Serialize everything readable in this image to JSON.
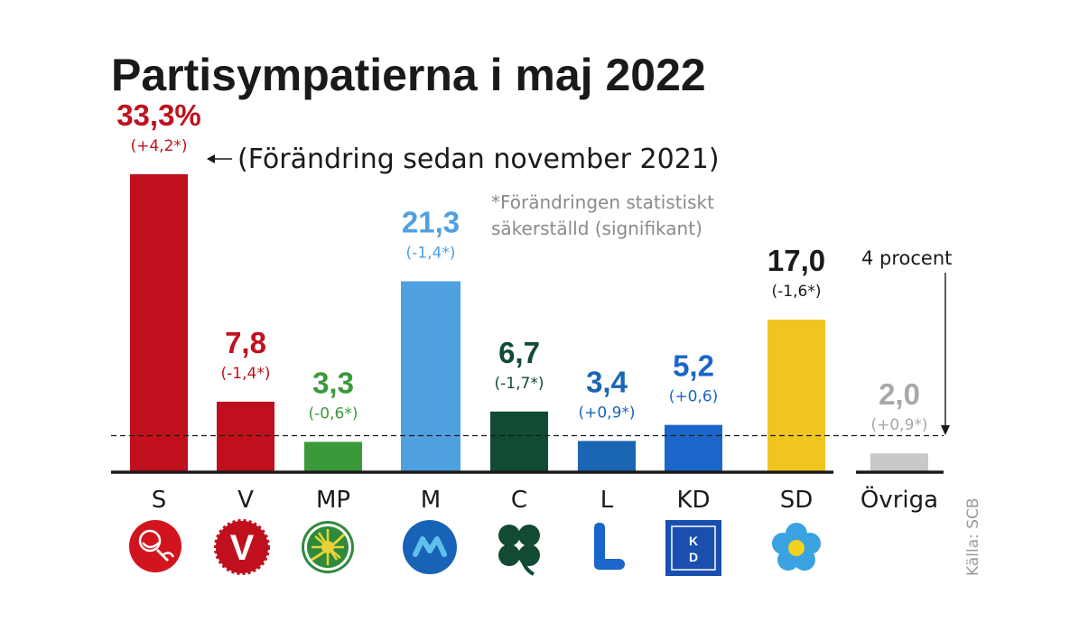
{
  "chart_data": {
    "type": "bar",
    "title": "Partisympatierna i maj 2022",
    "change_note": "(Förändring sedan november 2021)",
    "significance_note": [
      "*Förändringen statistiskt",
      "säkerställd (signifikant)"
    ],
    "threshold_label": "4 procent",
    "threshold_value": 4,
    "source": "Källa: SCB",
    "categories": [
      "S",
      "V",
      "MP",
      "M",
      "C",
      "L",
      "KD",
      "SD",
      "Övriga"
    ],
    "values": [
      33.3,
      7.8,
      3.3,
      21.3,
      6.7,
      3.4,
      5.2,
      17.0,
      2.0
    ],
    "value_labels": [
      "33,3%",
      "7,8",
      "3,3",
      "21,3",
      "6,7",
      "3,4",
      "5,2",
      "17,0",
      "2,0"
    ],
    "change_labels": [
      "(+4,2*)",
      "(-1,4*)",
      "(-0,6*)",
      "(-1,4*)",
      "(-1,7*)",
      "(+0,9*)",
      "(+0,6)",
      "(-1,6*)",
      "(+0,9*)"
    ],
    "colors": [
      "#c0101d",
      "#c0101d",
      "#3a9a3a",
      "#4fa0df",
      "#124a33",
      "#1a66b3",
      "#1a66c9",
      "#f0c520",
      "#c8c8c8"
    ],
    "label_colors": [
      "#c0101d",
      "#c0101d",
      "#3a9a3a",
      "#4fa0df",
      "#124a33",
      "#1a66b3",
      "#1a66c9",
      "#1a1a1a",
      "#a8a8a8"
    ],
    "logos": [
      "rose-icon",
      "v-heart-icon",
      "dandelion-icon",
      "m-circle-icon",
      "four-leaf-clover-icon",
      "l-letter-icon",
      "kd-square-icon",
      "blue-flower-icon",
      null
    ],
    "ylim": [
      0,
      35
    ],
    "grid": false
  }
}
